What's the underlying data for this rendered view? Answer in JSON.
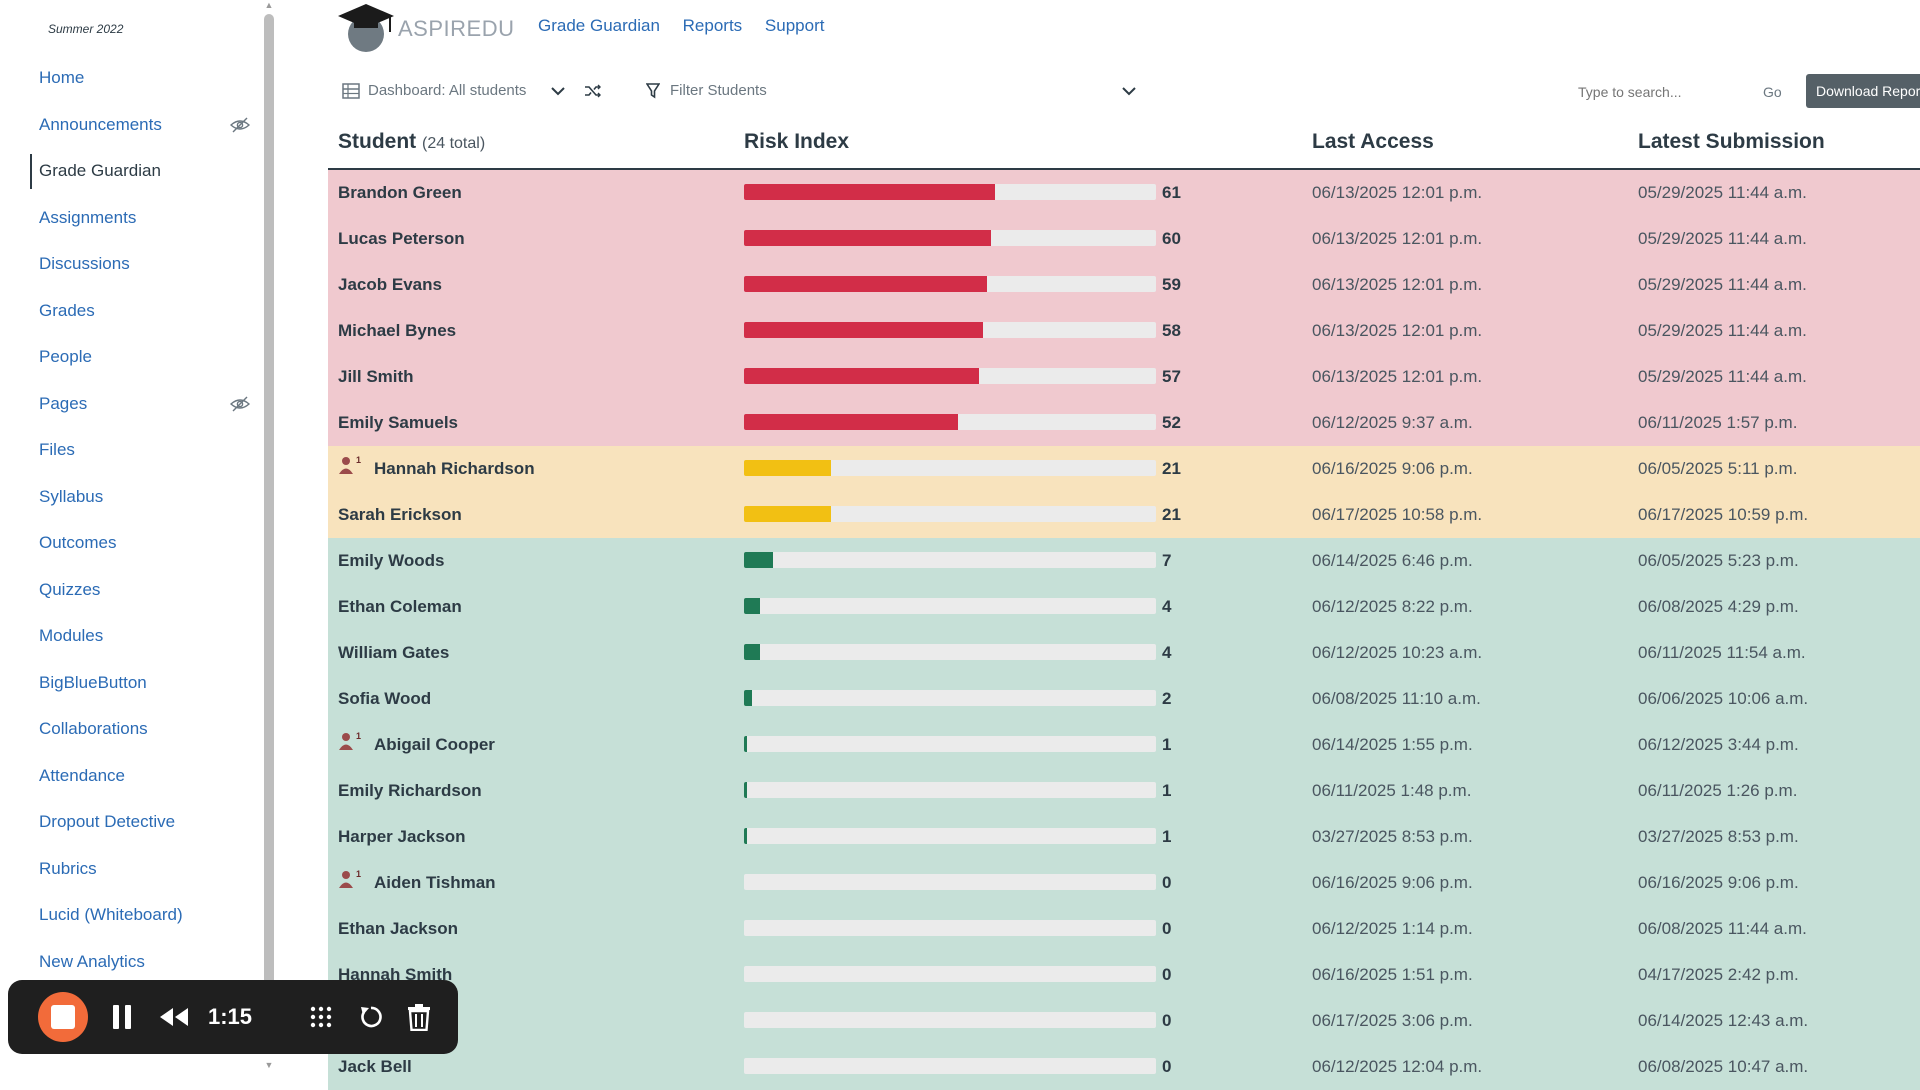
{
  "sidebar": {
    "term": "Summer 2022",
    "items": [
      {
        "label": "Home",
        "hidden": false
      },
      {
        "label": "Announcements",
        "hidden": true
      },
      {
        "label": "Grade Guardian",
        "hidden": false,
        "active": true
      },
      {
        "label": "Assignments",
        "hidden": false
      },
      {
        "label": "Discussions",
        "hidden": false
      },
      {
        "label": "Grades",
        "hidden": false
      },
      {
        "label": "People",
        "hidden": false
      },
      {
        "label": "Pages",
        "hidden": true
      },
      {
        "label": "Files",
        "hidden": false
      },
      {
        "label": "Syllabus",
        "hidden": false
      },
      {
        "label": "Outcomes",
        "hidden": false
      },
      {
        "label": "Quizzes",
        "hidden": false
      },
      {
        "label": "Modules",
        "hidden": false
      },
      {
        "label": "BigBlueButton",
        "hidden": false
      },
      {
        "label": "Collaborations",
        "hidden": false
      },
      {
        "label": "Attendance",
        "hidden": false
      },
      {
        "label": "Dropout Detective",
        "hidden": false
      },
      {
        "label": "Rubrics",
        "hidden": false
      },
      {
        "label": "Lucid (Whiteboard)",
        "hidden": false
      },
      {
        "label": "New Analytics",
        "hidden": false
      }
    ]
  },
  "header": {
    "logo_text": "ASPIREDU",
    "links": [
      "Grade Guardian",
      "Reports",
      "Support"
    ]
  },
  "toolbar": {
    "dashboard_label": "Dashboard: All students",
    "filter_label": "Filter Students",
    "search_placeholder": "Type to search...",
    "go_label": "Go",
    "download_label": "Download Report"
  },
  "table": {
    "headers": {
      "student": "Student",
      "student_count": "(24 total)",
      "risk": "Risk Index",
      "last_access": "Last Access",
      "latest_submission": "Latest Submission"
    },
    "rows": [
      {
        "name": "Brandon Green",
        "risk": 61,
        "level": "red",
        "flag": false,
        "last_access": "06/13/2025 12:01 p.m.",
        "latest_submission": "05/29/2025 11:44 a.m."
      },
      {
        "name": "Lucas Peterson",
        "risk": 60,
        "level": "red",
        "flag": false,
        "last_access": "06/13/2025 12:01 p.m.",
        "latest_submission": "05/29/2025 11:44 a.m."
      },
      {
        "name": "Jacob Evans",
        "risk": 59,
        "level": "red",
        "flag": false,
        "last_access": "06/13/2025 12:01 p.m.",
        "latest_submission": "05/29/2025 11:44 a.m."
      },
      {
        "name": "Michael Bynes",
        "risk": 58,
        "level": "red",
        "flag": false,
        "last_access": "06/13/2025 12:01 p.m.",
        "latest_submission": "05/29/2025 11:44 a.m."
      },
      {
        "name": "Jill Smith",
        "risk": 57,
        "level": "red",
        "flag": false,
        "last_access": "06/13/2025 12:01 p.m.",
        "latest_submission": "05/29/2025 11:44 a.m."
      },
      {
        "name": "Emily Samuels",
        "risk": 52,
        "level": "red",
        "flag": false,
        "last_access": "06/12/2025 9:37 a.m.",
        "latest_submission": "06/11/2025 1:57 p.m."
      },
      {
        "name": "Hannah Richardson",
        "risk": 21,
        "level": "yellow",
        "flag": true,
        "last_access": "06/16/2025 9:06 p.m.",
        "latest_submission": "06/05/2025 5:11 p.m."
      },
      {
        "name": "Sarah Erickson",
        "risk": 21,
        "level": "yellow",
        "flag": false,
        "last_access": "06/17/2025 10:58 p.m.",
        "latest_submission": "06/17/2025 10:59 p.m."
      },
      {
        "name": "Emily Woods",
        "risk": 7,
        "level": "green",
        "flag": false,
        "last_access": "06/14/2025 6:46 p.m.",
        "latest_submission": "06/05/2025 5:23 p.m."
      },
      {
        "name": "Ethan Coleman",
        "risk": 4,
        "level": "green",
        "flag": false,
        "last_access": "06/12/2025 8:22 p.m.",
        "latest_submission": "06/08/2025 4:29 p.m."
      },
      {
        "name": "William Gates",
        "risk": 4,
        "level": "green",
        "flag": false,
        "last_access": "06/12/2025 10:23 a.m.",
        "latest_submission": "06/11/2025 11:54 a.m."
      },
      {
        "name": "Sofia Wood",
        "risk": 2,
        "level": "green",
        "flag": false,
        "last_access": "06/08/2025 11:10 a.m.",
        "latest_submission": "06/06/2025 10:06 a.m."
      },
      {
        "name": "Abigail Cooper",
        "risk": 1,
        "level": "green",
        "flag": true,
        "last_access": "06/14/2025 1:55 p.m.",
        "latest_submission": "06/12/2025 3:44 p.m."
      },
      {
        "name": "Emily Richardson",
        "risk": 1,
        "level": "green",
        "flag": false,
        "last_access": "06/11/2025 1:48 p.m.",
        "latest_submission": "06/11/2025 1:26 p.m."
      },
      {
        "name": "Harper Jackson",
        "risk": 1,
        "level": "green",
        "flag": false,
        "last_access": "03/27/2025 8:53 p.m.",
        "latest_submission": "03/27/2025 8:53 p.m."
      },
      {
        "name": "Aiden Tishman",
        "risk": 0,
        "level": "green",
        "flag": true,
        "last_access": "06/16/2025 9:06 p.m.",
        "latest_submission": "06/16/2025 9:06 p.m."
      },
      {
        "name": "Ethan Jackson",
        "risk": 0,
        "level": "green",
        "flag": false,
        "last_access": "06/12/2025 1:14 p.m.",
        "latest_submission": "06/08/2025 11:44 a.m."
      },
      {
        "name": "Hannah Smith",
        "risk": 0,
        "level": "green",
        "flag": false,
        "last_access": "06/16/2025 1:51 p.m.",
        "latest_submission": "04/17/2025 2:42 p.m."
      },
      {
        "name": "",
        "risk": 0,
        "level": "green",
        "flag": false,
        "last_access": "06/17/2025 3:06 p.m.",
        "latest_submission": "06/14/2025 12:43 a.m."
      },
      {
        "name": "Jack Bell",
        "risk": 0,
        "level": "green",
        "flag": false,
        "last_access": "06/12/2025 12:04 p.m.",
        "latest_submission": "06/08/2025 10:47 a.m."
      }
    ]
  },
  "recorder": {
    "time": "1:15"
  },
  "colors": {
    "red_bar": "#d22d48",
    "yellow_bar": "#f2c013",
    "green_bar": "#1f7a55",
    "link": "#2b6bb5"
  }
}
